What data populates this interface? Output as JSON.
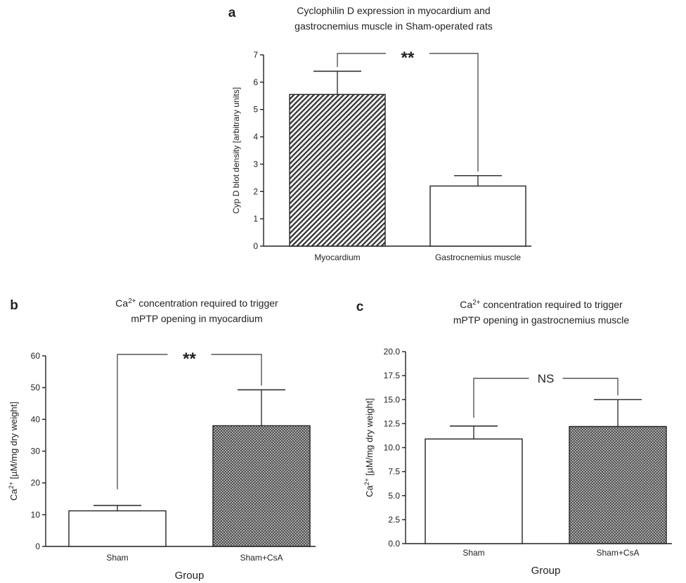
{
  "chart_data": [
    {
      "panel": "a",
      "type": "bar",
      "title": [
        "Cyclophilin D expression in myocardium and",
        "gastrocnemius muscle in Sham-operated rats"
      ],
      "ylabel": "Cyp D blot density [arbitrary units]",
      "xlabel": "",
      "categories": [
        "Myocardium",
        "Gastrocnemius muscle"
      ],
      "values": [
        5.55,
        2.2
      ],
      "errors": [
        0.85,
        0.38
      ],
      "fills": [
        "diagonal-hatch",
        "white"
      ],
      "ylim": [
        0,
        7
      ],
      "yticks": [
        "0",
        "1",
        "2",
        "3",
        "4",
        "5",
        "6",
        "7"
      ],
      "significance": "**"
    },
    {
      "panel": "b",
      "type": "bar",
      "title": [
        "Ca2+ concentration required to trigger",
        "mPTP opening in myocardium"
      ],
      "ylabel": "Ca2+ [µM/mg dry weight]",
      "xlabel": "Group",
      "categories": [
        "Sham",
        "Sham+CsA"
      ],
      "values": [
        11.2,
        38
      ],
      "errors": [
        1.7,
        11.3
      ],
      "fills": [
        "white",
        "crosshatch"
      ],
      "ylim": [
        0,
        60
      ],
      "yticks": [
        "0",
        "10",
        "20",
        "30",
        "40",
        "50",
        "60"
      ],
      "significance": "**"
    },
    {
      "panel": "c",
      "type": "bar",
      "title": [
        "Ca2+ concentration required to trigger",
        "mPTP opening in gastrocnemius muscle"
      ],
      "ylabel": "Ca2+ [µM/mg dry weight]",
      "xlabel": "Group",
      "categories": [
        "Sham",
        "Sham+CsA"
      ],
      "values": [
        10.9,
        12.2
      ],
      "errors": [
        1.35,
        2.8
      ],
      "fills": [
        "white",
        "crosshatch"
      ],
      "ylim": [
        0,
        20
      ],
      "yticks": [
        "0.0",
        "2.5",
        "5.0",
        "7.5",
        "10.0",
        "12.5",
        "15.0",
        "17.5",
        "20.0"
      ],
      "significance": "NS"
    }
  ]
}
